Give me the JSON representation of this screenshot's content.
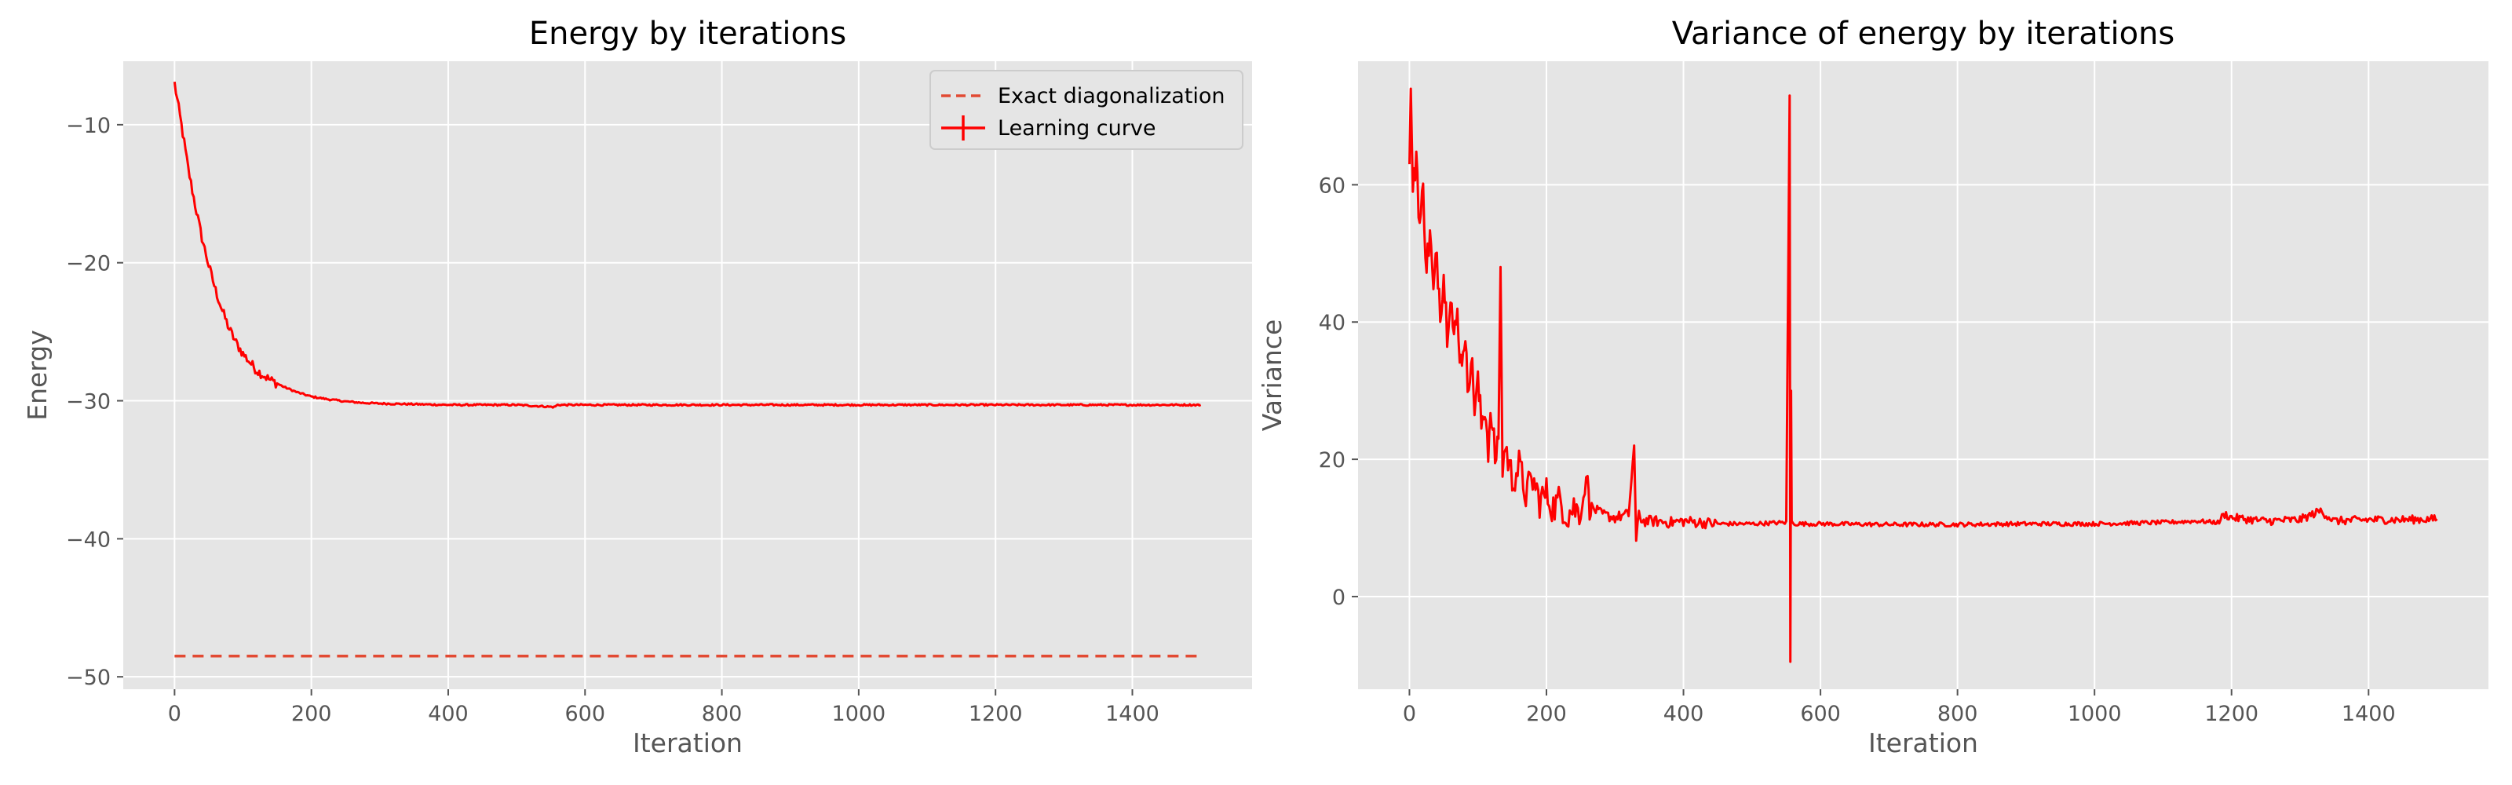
{
  "chart_data": [
    {
      "type": "line",
      "title": "Energy by iterations",
      "xlabel": "Iteration",
      "ylabel": "Energy",
      "xlim": [
        -75,
        1575
      ],
      "ylim": [
        -50.9,
        -5.4
      ],
      "xticks": [
        0,
        200,
        400,
        600,
        800,
        1000,
        1200,
        1400
      ],
      "xtick_labels": [
        "0",
        "200",
        "400",
        "600",
        "800",
        "1000",
        "1200",
        "1400"
      ],
      "yticks": [
        -10,
        -20,
        -30,
        -40,
        -50
      ],
      "ytick_labels": [
        "−10",
        "−20",
        "−30",
        "−40",
        "−50"
      ],
      "grid": true,
      "legend_position": "top-right",
      "series": [
        {
          "name": "Exact diagonalization",
          "style": "dashed",
          "color": "#E24A33",
          "x": [
            0,
            1500
          ],
          "y": [
            -48.5,
            -48.5
          ]
        },
        {
          "name": "Learning curve",
          "style": "solid-errorbar",
          "color": "#FF0000",
          "x": [
            0,
            10,
            20,
            30,
            40,
            50,
            60,
            70,
            80,
            90,
            100,
            120,
            140,
            160,
            180,
            200,
            225,
            250,
            275,
            300,
            350,
            400,
            450,
            500,
            555,
            560,
            600,
            700,
            800,
            900,
            1000,
            1100,
            1200,
            1300,
            1400,
            1500
          ],
          "y": [
            -7.0,
            -10.0,
            -13.2,
            -15.8,
            -18.2,
            -20.2,
            -22.0,
            -23.5,
            -24.8,
            -25.8,
            -26.6,
            -27.8,
            -28.5,
            -29.0,
            -29.4,
            -29.7,
            -29.9,
            -30.05,
            -30.15,
            -30.2,
            -30.25,
            -30.3,
            -30.3,
            -30.3,
            -30.45,
            -30.3,
            -30.3,
            -30.3,
            -30.3,
            -30.3,
            -30.3,
            -30.3,
            -30.3,
            -30.3,
            -30.3,
            -30.3
          ]
        }
      ]
    },
    {
      "type": "line",
      "title": "Variance of energy by iterations",
      "xlabel": "Iteration",
      "ylabel": "Variance",
      "xlim": [
        -75,
        1575
      ],
      "ylim": [
        -13.5,
        78
      ],
      "xticks": [
        0,
        200,
        400,
        600,
        800,
        1000,
        1200,
        1400
      ],
      "xtick_labels": [
        "0",
        "200",
        "400",
        "600",
        "800",
        "1000",
        "1200",
        "1400"
      ],
      "yticks": [
        0,
        20,
        40,
        60
      ],
      "ytick_labels": [
        "0",
        "20",
        "40",
        "60"
      ],
      "grid": true,
      "series": [
        {
          "color": "#FF0000",
          "x": [
            0,
            2,
            5,
            10,
            15,
            20,
            25,
            30,
            35,
            40,
            45,
            50,
            55,
            60,
            65,
            70,
            75,
            80,
            85,
            90,
            95,
            100,
            105,
            110,
            115,
            120,
            125,
            130,
            133,
            136,
            140,
            150,
            160,
            170,
            180,
            190,
            200,
            210,
            220,
            230,
            240,
            250,
            260,
            263,
            266,
            280,
            300,
            320,
            328,
            331,
            335,
            340,
            360,
            380,
            400,
            450,
            500,
            550,
            555,
            556,
            557,
            558,
            560,
            600,
            700,
            800,
            900,
            1000,
            1100,
            1150,
            1180,
            1190,
            1200,
            1250,
            1300,
            1330,
            1350,
            1400,
            1450,
            1500
          ],
          "y": [
            63,
            74,
            58,
            65,
            54,
            59,
            48,
            53,
            44,
            50,
            42,
            47,
            39,
            45,
            37,
            41,
            34,
            38,
            31,
            35,
            28,
            31,
            25,
            28,
            22,
            26,
            20,
            23,
            48,
            19,
            22,
            17,
            19,
            15,
            17,
            14,
            15,
            13,
            14,
            12,
            13,
            12,
            18,
            12,
            13,
            12,
            11.5,
            12,
            22,
            8,
            12,
            11,
            11,
            10.8,
            11,
            10.6,
            10.6,
            10.8,
            73,
            -9.5,
            30,
            11,
            10.6,
            10.6,
            10.5,
            10.5,
            10.6,
            10.6,
            10.8,
            11,
            10.8,
            12,
            11.5,
            11,
            11.2,
            12.5,
            11,
            11.2,
            11.2,
            11.3
          ]
        }
      ]
    }
  ]
}
